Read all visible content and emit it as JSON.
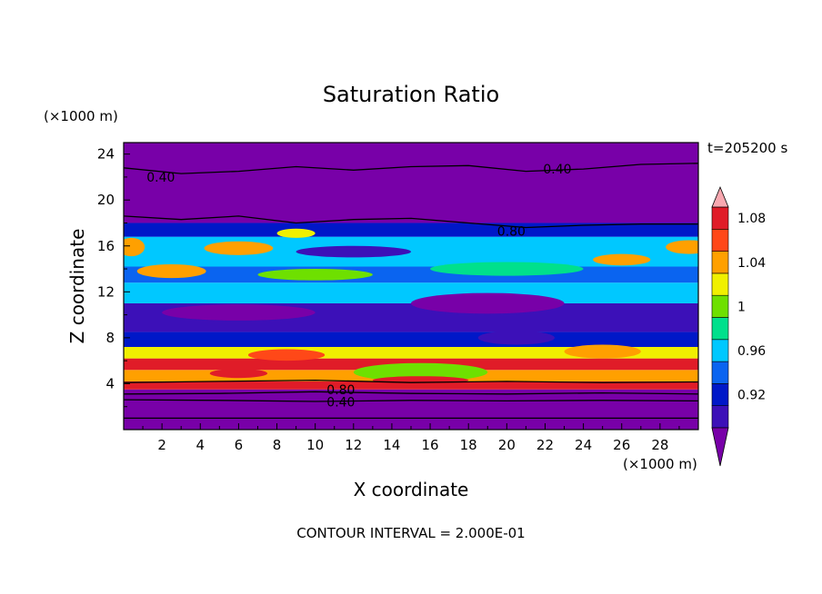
{
  "chart_data": {
    "type": "heatmap",
    "title": "Saturation Ratio",
    "xlabel": "X coordinate",
    "ylabel": "Z coordinate",
    "x_unit": "(×1000 m)",
    "y_unit": "(×1000 m)",
    "time_label": "t=205200 s",
    "footer": "CONTOUR INTERVAL = 2.000E-01",
    "xlim": [
      0,
      30
    ],
    "ylim": [
      0,
      25
    ],
    "x_ticks": [
      2,
      4,
      6,
      8,
      10,
      12,
      14,
      16,
      18,
      20,
      22,
      24,
      26,
      28
    ],
    "y_ticks": [
      4,
      8,
      12,
      16,
      20,
      24
    ],
    "colorbar": {
      "levels": [
        0.9,
        0.92,
        0.94,
        0.96,
        0.98,
        1.0,
        1.02,
        1.04,
        1.06,
        1.08,
        1.1
      ],
      "colors": [
        "#7800a8",
        "#3c10b8",
        "#0018c8",
        "#0a64f0",
        "#00c8ff",
        "#00e08c",
        "#6ee000",
        "#f0f000",
        "#ffa000",
        "#ff4818",
        "#e01c28",
        "#f8a8b0"
      ],
      "tick_labels": [
        "0.92",
        "0.96",
        "1",
        "1.04",
        "1.08"
      ],
      "tick_values": [
        0.92,
        0.96,
        1.0,
        1.04,
        1.08
      ]
    },
    "contour_labels": [
      {
        "text": "0.40",
        "x": 1.2,
        "z": 22.0
      },
      {
        "text": "0.40",
        "x": 21.9,
        "z": 22.7
      },
      {
        "text": "0.80",
        "x": 19.5,
        "z": 17.3
      },
      {
        "text": "0.80",
        "x": 10.6,
        "z": 3.5
      },
      {
        "text": "0.40",
        "x": 10.6,
        "z": 2.4
      }
    ],
    "bands": [
      {
        "z0": 0,
        "z1": 3.5,
        "level": 0.9
      },
      {
        "z0": 3.5,
        "z1": 4.2,
        "level": 1.1
      },
      {
        "z0": 4.2,
        "z1": 5.2,
        "level": 1.06
      },
      {
        "z0": 5.2,
        "z1": 6.2,
        "level": 1.1
      },
      {
        "z0": 6.2,
        "z1": 7.2,
        "level": 1.04
      },
      {
        "z0": 7.2,
        "z1": 8.5,
        "level": 0.94
      },
      {
        "z0": 8.5,
        "z1": 11.0,
        "level": 0.92
      },
      {
        "z0": 11.0,
        "z1": 12.8,
        "level": 0.98
      },
      {
        "z0": 12.8,
        "z1": 14.2,
        "level": 0.96
      },
      {
        "z0": 14.2,
        "z1": 16.8,
        "level": 0.98
      },
      {
        "z0": 16.8,
        "z1": 18.0,
        "level": 0.94
      },
      {
        "z0": 18.0,
        "z1": 25.0,
        "level": 0.9
      }
    ],
    "blobs": [
      {
        "x": 2.5,
        "z": 13.8,
        "rx": 1.8,
        "rz": 0.6,
        "level": 1.06
      },
      {
        "x": 6.0,
        "z": 15.8,
        "rx": 1.8,
        "rz": 0.6,
        "level": 1.06
      },
      {
        "x": 0.4,
        "z": 15.9,
        "rx": 0.7,
        "rz": 0.8,
        "level": 1.06
      },
      {
        "x": 9.0,
        "z": 17.1,
        "rx": 1.0,
        "rz": 0.4,
        "level": 1.04
      },
      {
        "x": 26.0,
        "z": 14.8,
        "rx": 1.5,
        "rz": 0.5,
        "level": 1.06
      },
      {
        "x": 29.5,
        "z": 15.9,
        "rx": 1.2,
        "rz": 0.6,
        "level": 1.06
      },
      {
        "x": 10.0,
        "z": 13.5,
        "rx": 3.0,
        "rz": 0.5,
        "level": 1.02
      },
      {
        "x": 20.0,
        "z": 14.0,
        "rx": 4.0,
        "rz": 0.6,
        "level": 1.0
      },
      {
        "x": 6.0,
        "z": 10.2,
        "rx": 4.0,
        "rz": 0.7,
        "level": 0.9
      },
      {
        "x": 19.0,
        "z": 11.0,
        "rx": 4.0,
        "rz": 0.9,
        "level": 0.9
      },
      {
        "x": 12.0,
        "z": 15.5,
        "rx": 3.0,
        "rz": 0.5,
        "level": 0.92
      },
      {
        "x": 15.5,
        "z": 5.0,
        "rx": 3.5,
        "rz": 0.8,
        "level": 1.02
      },
      {
        "x": 15.5,
        "z": 4.3,
        "rx": 2.5,
        "rz": 0.35,
        "level": 1.1
      },
      {
        "x": 6.0,
        "z": 4.9,
        "rx": 1.5,
        "rz": 0.4,
        "level": 1.1
      },
      {
        "x": 25.0,
        "z": 6.8,
        "rx": 2.0,
        "rz": 0.6,
        "level": 1.06
      },
      {
        "x": 8.5,
        "z": 6.5,
        "rx": 2.0,
        "rz": 0.5,
        "level": 1.08
      },
      {
        "x": 20.5,
        "z": 8.0,
        "rx": 2.0,
        "rz": 0.6,
        "level": 0.92
      },
      {
        "x": 9.5,
        "z": 19.8,
        "rx": 2.0,
        "rz": 0.4,
        "level": 0.9
      }
    ],
    "contour_lines": [
      [
        [
          0,
          22.8
        ],
        [
          3,
          22.3
        ],
        [
          6,
          22.5
        ],
        [
          9,
          22.9
        ],
        [
          12,
          22.6
        ],
        [
          15,
          22.9
        ],
        [
          18,
          23.0
        ],
        [
          21,
          22.5
        ],
        [
          24,
          22.7
        ],
        [
          27,
          23.1
        ],
        [
          30,
          23.2
        ]
      ],
      [
        [
          0,
          18.6
        ],
        [
          3,
          18.3
        ],
        [
          6,
          18.6
        ],
        [
          9,
          18.0
        ],
        [
          12,
          18.3
        ],
        [
          15,
          18.4
        ],
        [
          18,
          18.0
        ],
        [
          21,
          17.6
        ],
        [
          24,
          17.8
        ],
        [
          27,
          17.9
        ],
        [
          30,
          17.9
        ]
      ],
      [
        [
          0,
          3.1
        ],
        [
          5,
          3.15
        ],
        [
          10,
          3.3
        ],
        [
          15,
          3.15
        ],
        [
          20,
          3.1
        ],
        [
          25,
          3.2
        ],
        [
          30,
          3.1
        ]
      ],
      [
        [
          0,
          2.6
        ],
        [
          5,
          2.55
        ],
        [
          10,
          2.45
        ],
        [
          15,
          2.55
        ],
        [
          20,
          2.5
        ],
        [
          25,
          2.55
        ],
        [
          30,
          2.5
        ]
      ],
      [
        [
          0,
          1.0
        ],
        [
          10,
          1.0
        ],
        [
          20,
          1.0
        ],
        [
          30,
          1.0
        ]
      ],
      [
        [
          0,
          4.1
        ],
        [
          5,
          4.2
        ],
        [
          10,
          4.3
        ],
        [
          15,
          4.1
        ],
        [
          20,
          4.2
        ],
        [
          25,
          4.1
        ],
        [
          30,
          4.15
        ]
      ]
    ]
  }
}
